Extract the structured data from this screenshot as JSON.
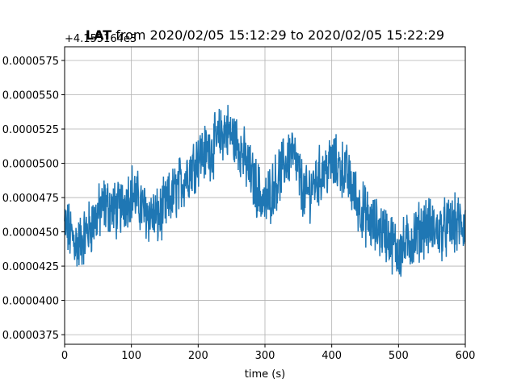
{
  "chart_data": {
    "type": "line",
    "title": "LAT from 2020/02/05 15:12:29 to 2020/02/05 15:22:29",
    "title_bold_part": "LAT",
    "title_rest": " from 2020/02/05 15:12:29 to 2020/02/05 15:22:29",
    "xlabel": "time (s)",
    "ylabel": "",
    "offset_label": "+4.155164e3",
    "xlim": [
      0,
      600
    ],
    "ylim": [
      3.68e-05,
      5.85e-05
    ],
    "xticks": [
      0,
      100,
      200,
      300,
      400,
      500,
      600
    ],
    "xtick_labels": [
      "0",
      "100",
      "200",
      "300",
      "400",
      "500",
      "600"
    ],
    "yticks": [
      3.75e-05,
      4e-05,
      4.25e-05,
      4.5e-05,
      4.75e-05,
      5e-05,
      5.25e-05,
      5.5e-05,
      5.75e-05
    ],
    "ytick_labels": [
      "0.0000375",
      "0.0000400",
      "0.0000425",
      "0.0000450",
      "0.0000475",
      "0.0000500",
      "0.0000525",
      "0.0000550",
      "0.0000575"
    ],
    "grid": true,
    "line_color": "#1f77b4",
    "series_trend": [
      [
        0,
        4.55e-05
      ],
      [
        20,
        4.4e-05
      ],
      [
        40,
        4.55e-05
      ],
      [
        60,
        4.7e-05
      ],
      [
        80,
        4.65e-05
      ],
      [
        100,
        4.8e-05
      ],
      [
        120,
        4.65e-05
      ],
      [
        140,
        4.6e-05
      ],
      [
        160,
        4.75e-05
      ],
      [
        180,
        4.9e-05
      ],
      [
        200,
        5.05e-05
      ],
      [
        220,
        5.1e-05
      ],
      [
        240,
        5.25e-05
      ],
      [
        260,
        5.15e-05
      ],
      [
        280,
        4.9e-05
      ],
      [
        300,
        4.7e-05
      ],
      [
        320,
        4.9e-05
      ],
      [
        340,
        5.1e-05
      ],
      [
        360,
        4.75e-05
      ],
      [
        380,
        4.9e-05
      ],
      [
        400,
        5e-05
      ],
      [
        420,
        4.95e-05
      ],
      [
        440,
        4.7e-05
      ],
      [
        460,
        4.55e-05
      ],
      [
        480,
        4.5e-05
      ],
      [
        500,
        4.35e-05
      ],
      [
        520,
        4.45e-05
      ],
      [
        540,
        4.55e-05
      ],
      [
        560,
        4.5e-05
      ],
      [
        580,
        4.55e-05
      ],
      [
        600,
        4.55e-05
      ]
    ],
    "noise_amplitude": 1.8e-06
  }
}
